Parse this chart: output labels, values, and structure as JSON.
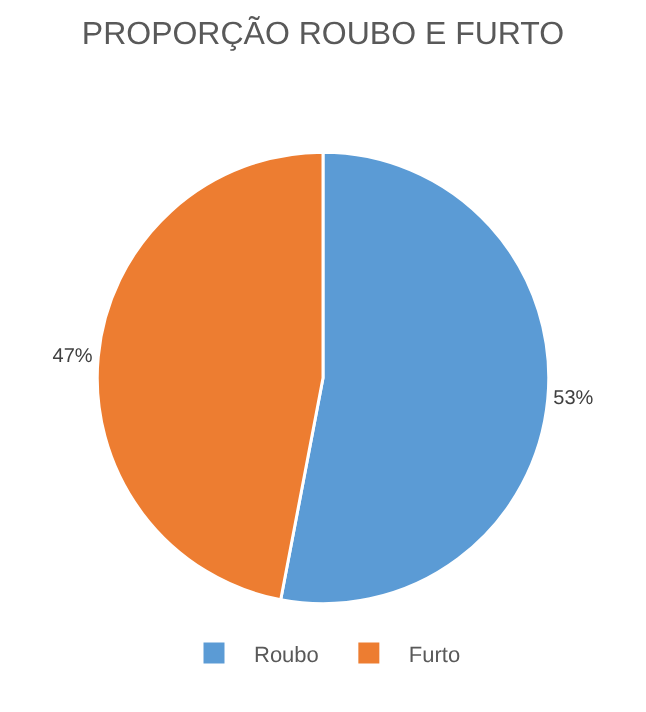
{
  "chart_data": {
    "type": "pie",
    "title": "PROPORÇÃO ROUBO E FURTO",
    "categories": [
      "Roubo",
      "Furto"
    ],
    "values": [
      53,
      47
    ],
    "colors": [
      "#5b9bd5",
      "#ed7d31"
    ],
    "value_labels": [
      "53%",
      "47%"
    ],
    "legend": "bottom"
  }
}
